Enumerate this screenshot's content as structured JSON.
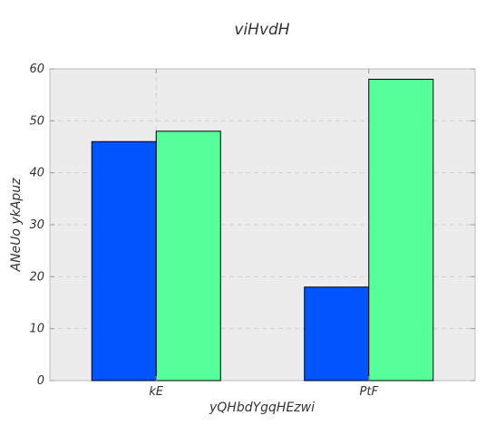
{
  "chart_data": {
    "type": "bar",
    "title": "viHvdH",
    "xlabel": "yQHbdYgqHEzwi",
    "ylabel": "ANeUo ykApuz",
    "categories": [
      "kE",
      "PtF"
    ],
    "series": [
      {
        "values": [
          46,
          18
        ],
        "color": "#0055ff"
      },
      {
        "values": [
          48,
          58
        ],
        "color": "#55ff99"
      }
    ],
    "ylim": [
      0,
      60
    ],
    "yticks": [
      0,
      10,
      20,
      30,
      40,
      50,
      60
    ],
    "grid": true,
    "legend": "none",
    "plot_background": "#ececec"
  }
}
